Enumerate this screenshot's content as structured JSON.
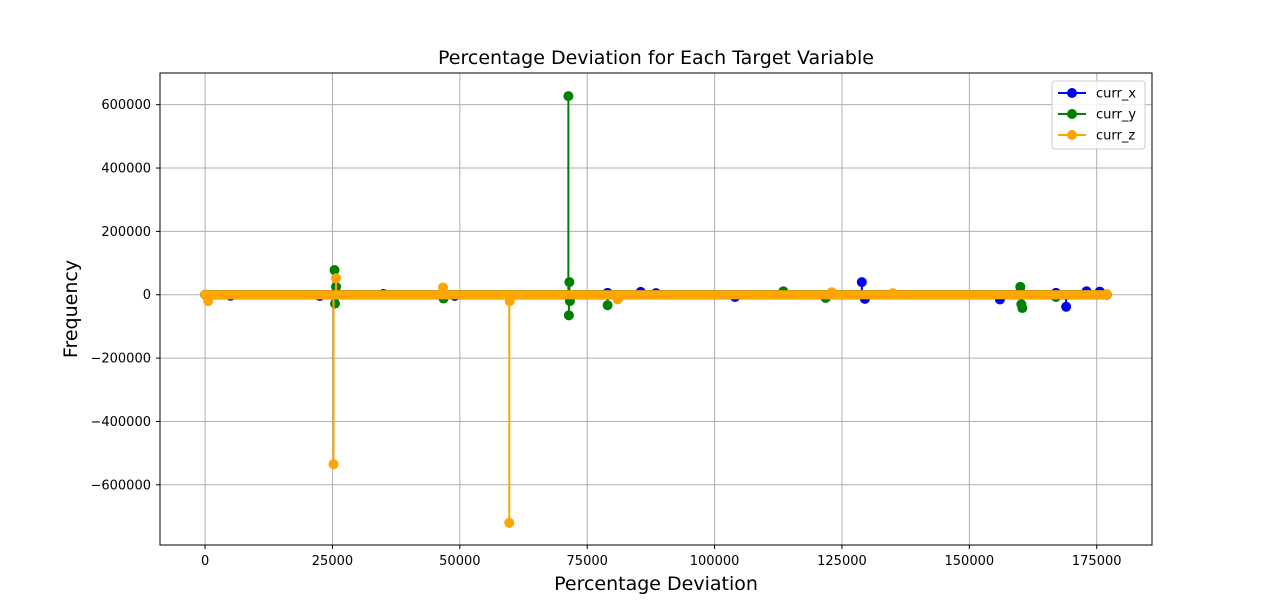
{
  "chart_data": {
    "type": "line",
    "title": "Percentage Deviation for Each Target Variable",
    "xlabel": "Percentage Deviation",
    "ylabel": "Frequency",
    "xlim": [
      -8850,
      185850
    ],
    "ylim": [
      -790000,
      700000
    ],
    "grid": true,
    "legend_position": "top-right",
    "x_ticks": [
      0,
      25000,
      50000,
      75000,
      100000,
      125000,
      150000,
      175000
    ],
    "x_tick_labels": [
      "0",
      "25000",
      "50000",
      "75000",
      "100000",
      "125000",
      "150000",
      "175000"
    ],
    "y_ticks": [
      600000,
      400000,
      200000,
      0,
      -200000,
      -400000,
      -600000
    ],
    "y_tick_labels": [
      "600000",
      "400000",
      "200000",
      "0",
      "−200000",
      "−400000",
      "−600000"
    ],
    "x_range": [
      0,
      177000
    ],
    "series": [
      {
        "name": "curr_x",
        "color": "#0000ff",
        "spikes": [
          [
            5000,
            -3000
          ],
          [
            22500,
            -4000
          ],
          [
            35000,
            2500
          ],
          [
            49000,
            -4000
          ],
          [
            79000,
            6000
          ],
          [
            85500,
            9000
          ],
          [
            88500,
            5000
          ],
          [
            104000,
            -7000
          ],
          [
            113500,
            3000
          ],
          [
            128900,
            40000
          ],
          [
            129500,
            -13000
          ],
          [
            156000,
            -15000
          ],
          [
            160000,
            8000
          ],
          [
            167000,
            6000
          ],
          [
            169000,
            -38000
          ],
          [
            173000,
            11000
          ],
          [
            175600,
            10000
          ]
        ]
      },
      {
        "name": "curr_y",
        "color": "#008000",
        "spikes": [
          [
            25400,
            78000
          ],
          [
            25500,
            -28000
          ],
          [
            25700,
            25000
          ],
          [
            46800,
            -12000
          ],
          [
            71300,
            627000
          ],
          [
            71400,
            -65000
          ],
          [
            71500,
            40000
          ],
          [
            71600,
            -20000
          ],
          [
            79000,
            -33000
          ],
          [
            113500,
            11000
          ],
          [
            121800,
            -10000
          ],
          [
            160000,
            25000
          ],
          [
            160200,
            -30000
          ],
          [
            160400,
            -42000
          ],
          [
            167000,
            -7000
          ]
        ]
      },
      {
        "name": "curr_z",
        "color": "#ffa500",
        "spikes": [
          [
            600,
            -20000
          ],
          [
            25200,
            -535000
          ],
          [
            25700,
            52000
          ],
          [
            46700,
            23000
          ],
          [
            59700,
            -720000
          ],
          [
            59800,
            -20000
          ],
          [
            81000,
            -15000
          ],
          [
            123000,
            8000
          ],
          [
            135000,
            5000
          ],
          [
            177000,
            2000
          ]
        ]
      }
    ]
  }
}
